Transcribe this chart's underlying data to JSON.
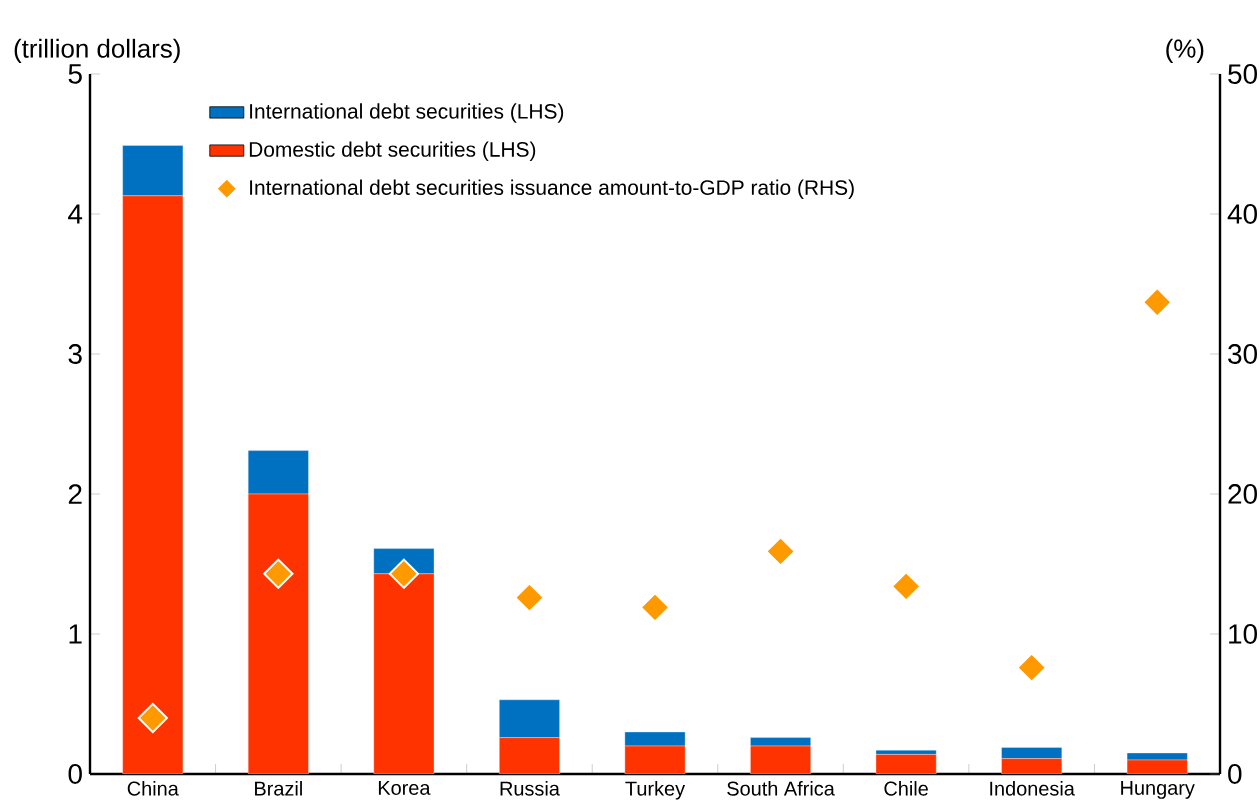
{
  "chart_data": {
    "type": "bar",
    "stacked": true,
    "ylabel": "(trillion dollars)",
    "y2label": "(%)",
    "categories": [
      "China",
      "Brazil",
      "Korea",
      "Russia",
      "Turkey",
      "South Africa",
      "Chile",
      "Indonesia",
      "Hungary"
    ],
    "series": [
      {
        "name": "Domestic debt securities (LHS)",
        "color": "#ff3300",
        "values": [
          4.13,
          2.0,
          1.43,
          0.26,
          0.2,
          0.2,
          0.14,
          0.11,
          0.1
        ]
      },
      {
        "name": "International debt securities (LHS)",
        "color": "#0070c0",
        "values": [
          0.36,
          0.31,
          0.18,
          0.27,
          0.1,
          0.06,
          0.03,
          0.08,
          0.05
        ]
      },
      {
        "name": "International debt securities issuance amount-to-GDP ratio (RHS)",
        "type": "scatter",
        "axis": "y2",
        "marker": "diamond",
        "color": "#ff9900",
        "values": [
          4.0,
          14.3,
          14.3,
          12.6,
          11.9,
          15.9,
          13.4,
          7.6,
          33.7
        ]
      }
    ],
    "ylim": [
      0,
      5
    ],
    "yticks": [
      0,
      1,
      2,
      3,
      4,
      5
    ],
    "y2lim": [
      0,
      50
    ],
    "y2ticks": [
      0,
      10,
      20,
      30,
      40,
      50
    ],
    "legend": "top left",
    "grid": false
  }
}
